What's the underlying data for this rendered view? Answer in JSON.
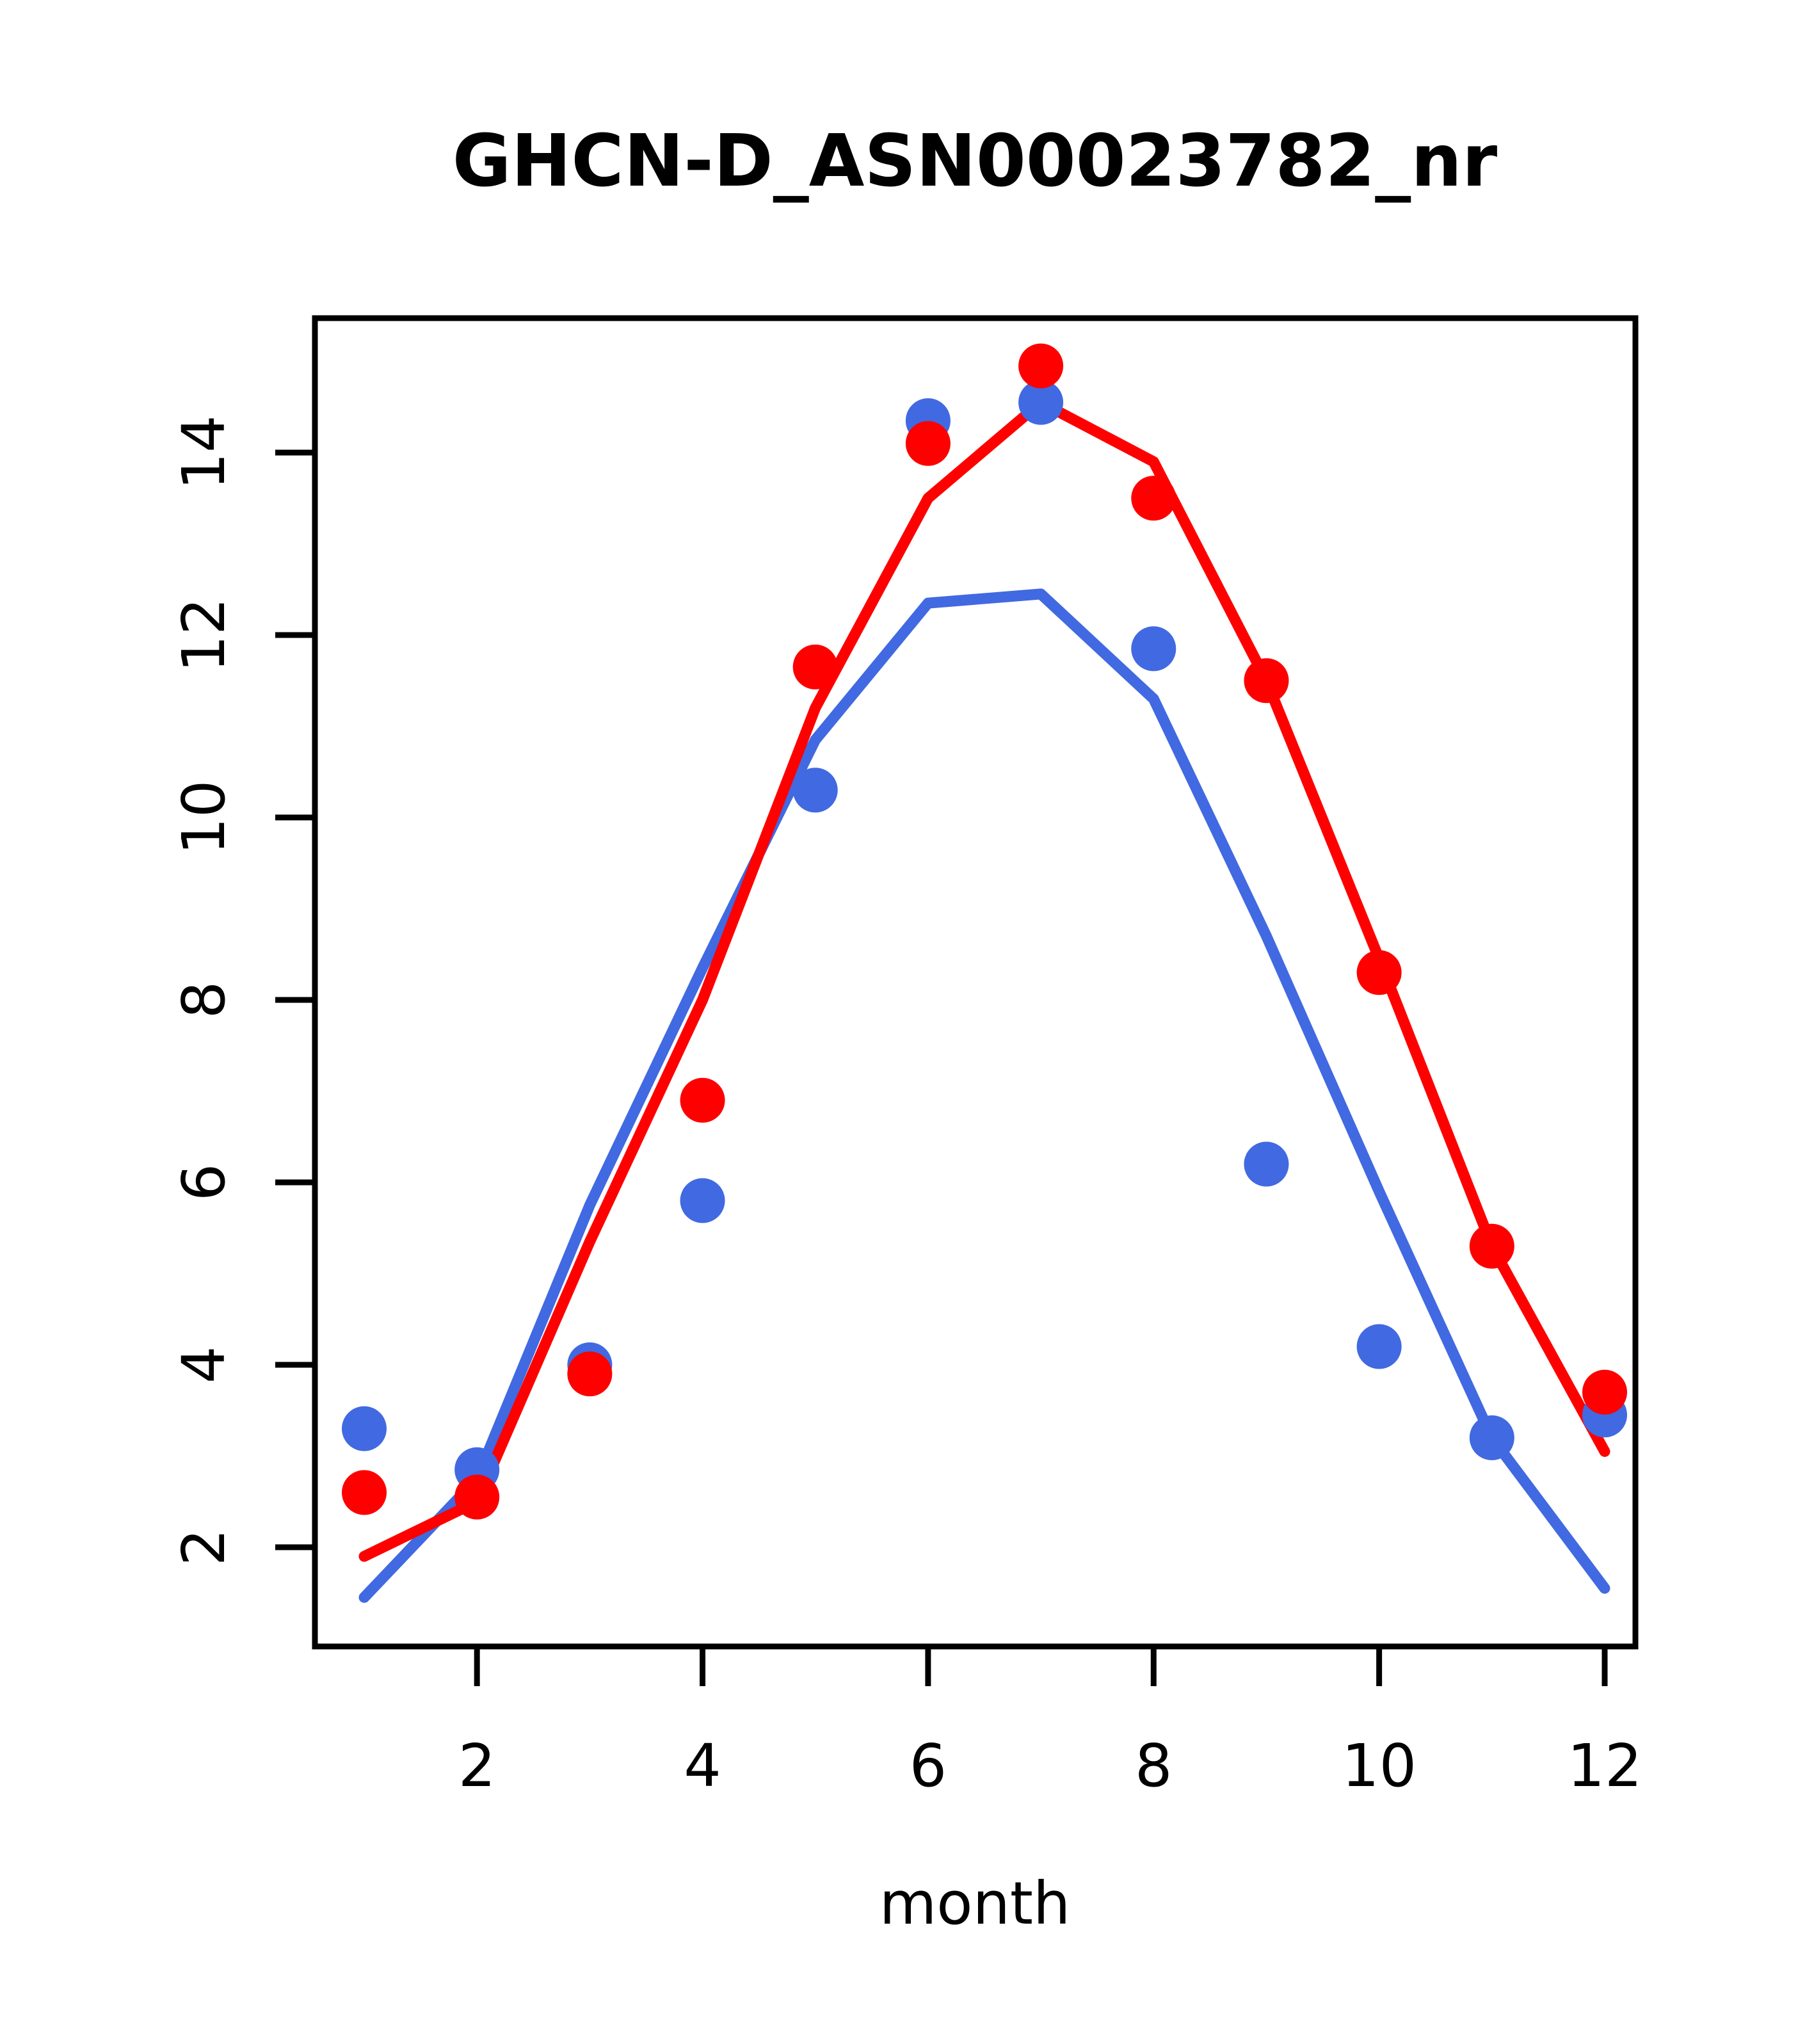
{
  "page": {
    "background_color": "#ffffff",
    "foreground_color": "#000000"
  },
  "chart_data": {
    "type": "line",
    "title": "GHCN-D_ASN00023782_nr",
    "xlabel": "month",
    "ylabel": "",
    "x": [
      1,
      2,
      3,
      4,
      5,
      6,
      7,
      8,
      9,
      10,
      11,
      12
    ],
    "xlim": [
      1,
      12
    ],
    "ylim": [
      1.1,
      15.5
    ],
    "x_ticks": [
      2,
      4,
      6,
      8,
      10,
      12
    ],
    "y_ticks": [
      2,
      4,
      6,
      8,
      10,
      12,
      14
    ],
    "grid": false,
    "legend": "none",
    "colors": {
      "blue": "#4169E1",
      "red": "#FF0000"
    },
    "series": [
      {
        "name": "blue-monthly-points",
        "type": "scatter",
        "color": "#4169E1",
        "values": [
          3.3,
          2.85,
          4.0,
          5.8,
          10.3,
          14.35,
          14.55,
          11.85,
          6.2,
          4.2,
          3.2,
          3.45
        ]
      },
      {
        "name": "red-monthly-points",
        "type": "scatter",
        "color": "#FF0000",
        "values": [
          2.6,
          2.55,
          3.9,
          6.9,
          11.65,
          14.1,
          14.95,
          13.5,
          11.5,
          8.3,
          5.3,
          3.7
        ]
      },
      {
        "name": "blue-fitted-line",
        "type": "line",
        "color": "#4169E1",
        "values": [
          1.45,
          2.75,
          5.75,
          8.35,
          10.85,
          12.35,
          12.45,
          11.3,
          8.7,
          5.9,
          3.2,
          1.55
        ]
      },
      {
        "name": "red-fitted-line",
        "type": "line",
        "color": "#FF0000",
        "values": [
          1.9,
          2.5,
          5.35,
          8.0,
          11.2,
          13.5,
          14.55,
          13.9,
          11.5,
          8.45,
          5.3,
          3.05
        ]
      }
    ]
  }
}
